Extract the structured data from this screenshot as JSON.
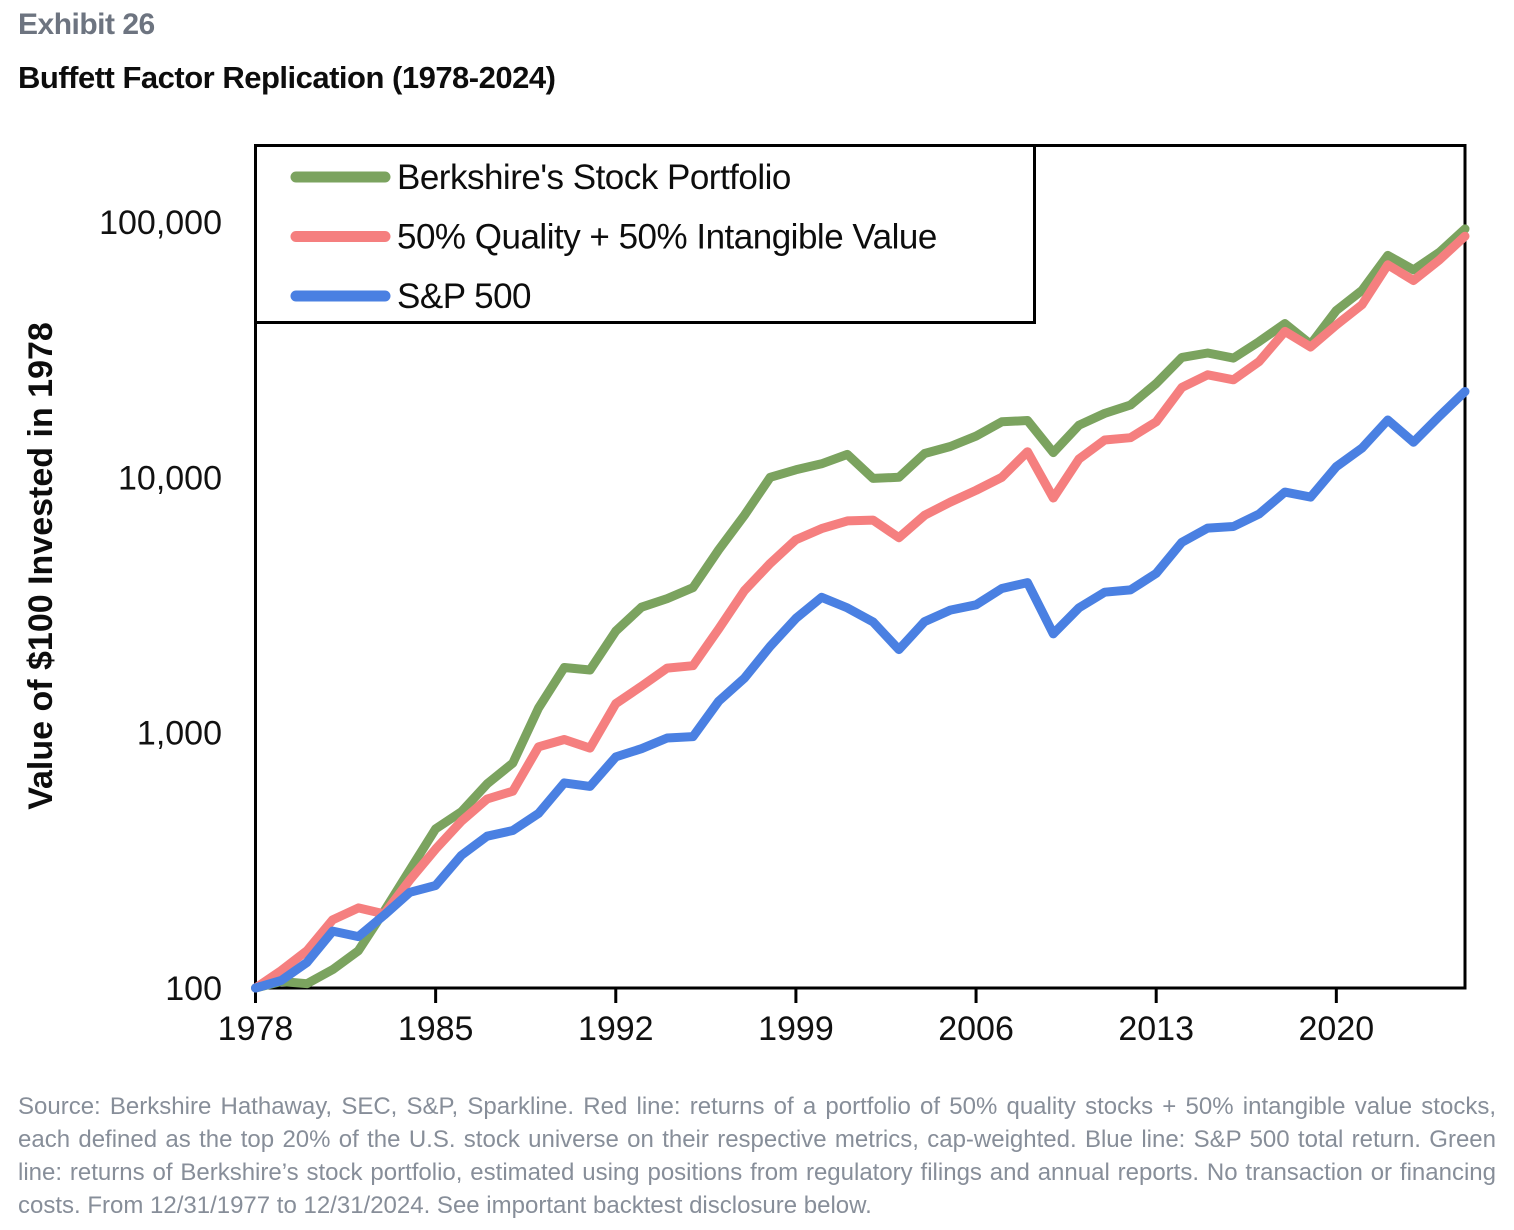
{
  "header": {
    "exhibit_label": "Exhibit 26",
    "title": "Buffett Factor Replication (1978-2024)"
  },
  "footnote": "Source: Berkshire Hathaway, SEC, S&P, Sparkline. Red line: returns of a portfolio of 50% quality stocks + 50% intangible value stocks, each defined as the top 20% of the U.S. stock universe on their respective metrics, cap-weighted. Blue line: S&P 500 total return. Green line: returns of Berkshire’s stock portfolio, estimated using positions from regulatory filings and annual reports. No transaction or financing costs. From 12/31/1977 to 12/31/2024. See important backtest disclosure below.",
  "chart_data": {
    "type": "line",
    "ylabel": "Value of $100 Invested in 1978",
    "y_scale": "log",
    "ylim": [
      100,
      200000
    ],
    "x_range": [
      1978,
      2025
    ],
    "x_ticks": [
      1978,
      1985,
      1992,
      1999,
      2006,
      2013,
      2020
    ],
    "y_ticks": [
      {
        "label": "100,000",
        "value": 100000
      },
      {
        "label": "10,000",
        "value": 10000
      },
      {
        "label": "1,000",
        "value": 1000
      },
      {
        "label": "100",
        "value": 100
      }
    ],
    "legend_position": "top-left",
    "grid": false,
    "years": [
      1978,
      1979,
      1980,
      1981,
      1982,
      1983,
      1984,
      1985,
      1986,
      1987,
      1988,
      1989,
      1990,
      1991,
      1992,
      1993,
      1994,
      1995,
      1996,
      1997,
      1998,
      1999,
      2000,
      2001,
      2002,
      2003,
      2004,
      2005,
      2006,
      2007,
      2008,
      2009,
      2010,
      2011,
      2012,
      2013,
      2014,
      2015,
      2016,
      2017,
      2018,
      2019,
      2020,
      2021,
      2022,
      2023,
      2024,
      2025
    ],
    "series": [
      {
        "name": "Berkshire's Stock Portfolio",
        "color": "#7BA35F",
        "values": [
          100,
          106,
          104,
          118,
          140,
          200,
          290,
          420,
          490,
          630,
          760,
          1250,
          1800,
          1760,
          2500,
          3100,
          3350,
          3700,
          5200,
          7100,
          10000,
          10700,
          11300,
          12300,
          9900,
          10000,
          12400,
          13200,
          14500,
          16500,
          16700,
          12500,
          16000,
          17800,
          19200,
          23300,
          29500,
          30700,
          29300,
          34000,
          40000,
          33200,
          45000,
          54000,
          74000,
          65000,
          76000,
          94000
        ]
      },
      {
        "name": "50% Quality + 50% Intangible Value",
        "color": "#F57F7F",
        "values": [
          100,
          117,
          140,
          185,
          206,
          195,
          265,
          350,
          450,
          550,
          590,
          880,
          940,
          870,
          1300,
          1520,
          1790,
          1830,
          2550,
          3600,
          4600,
          5700,
          6300,
          6750,
          6800,
          5800,
          7100,
          8000,
          8900,
          10000,
          12600,
          8300,
          11800,
          14000,
          14300,
          16500,
          22500,
          25200,
          24100,
          28400,
          37300,
          32400,
          39500,
          47500,
          68000,
          59000,
          71000,
          88000
        ]
      },
      {
        "name": "S&P 500",
        "color": "#4A80E2",
        "values": [
          100,
          107,
          126,
          167,
          159,
          193,
          237,
          252,
          331,
          393,
          414,
          483,
          636,
          616,
          804,
          865,
          953,
          965,
          1328,
          1634,
          2179,
          2803,
          3391,
          3082,
          2716,
          2115,
          2723,
          3019,
          3167,
          3668,
          3869,
          2438,
          3084,
          3549,
          3624,
          4204,
          5566,
          6328,
          6417,
          7187,
          8753,
          8368,
          11004,
          13029,
          16768,
          13733,
          17345,
          21681
        ]
      }
    ],
    "styling": {
      "line_width": 9,
      "axis_color": "#000000",
      "tick_label_color": "#111111",
      "legend_border_color": "#000000"
    }
  }
}
